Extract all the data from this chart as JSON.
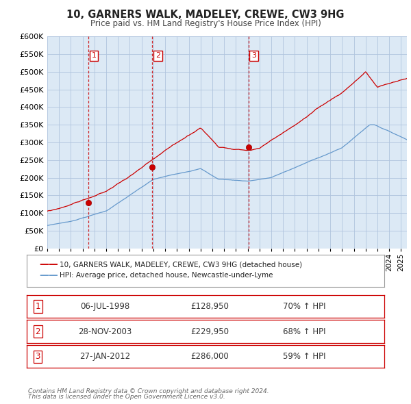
{
  "title": "10, GARNERS WALK, MADELEY, CREWE, CW3 9HG",
  "subtitle": "Price paid vs. HM Land Registry's House Price Index (HPI)",
  "legend_line1": "10, GARNERS WALK, MADELEY, CREWE, CW3 9HG (detached house)",
  "legend_line2": "HPI: Average price, detached house, Newcastle-under-Lyme",
  "footer_line1": "Contains HM Land Registry data © Crown copyright and database right 2024.",
  "footer_line2": "This data is licensed under the Open Government Licence v3.0.",
  "transactions": [
    {
      "num": 1,
      "date": "06-JUL-1998",
      "price": 128950,
      "price_str": "£128,950",
      "pct": "70%",
      "arrow": "↑"
    },
    {
      "num": 2,
      "date": "28-NOV-2003",
      "price": 229950,
      "price_str": "£229,950",
      "pct": "68%",
      "arrow": "↑"
    },
    {
      "num": 3,
      "date": "27-JAN-2012",
      "price": 286000,
      "price_str": "£286,000",
      "pct": "59%",
      "arrow": "↑"
    }
  ],
  "transaction_dates_decimal": [
    1998.51,
    2003.91,
    2012.07
  ],
  "transaction_prices": [
    128950,
    229950,
    286000
  ],
  "fig_bg_color": "#ffffff",
  "plot_bg_color": "#dce9f5",
  "red_line_color": "#cc0000",
  "blue_line_color": "#6699cc",
  "vline_color": "#cc0000",
  "grid_color": "#b0c4de",
  "ylim": [
    0,
    600000
  ],
  "yticks": [
    0,
    50000,
    100000,
    150000,
    200000,
    250000,
    300000,
    350000,
    400000,
    450000,
    500000,
    550000,
    600000
  ],
  "xstart": 1995.0,
  "xend": 2025.5,
  "xstart_data": 1994.5
}
